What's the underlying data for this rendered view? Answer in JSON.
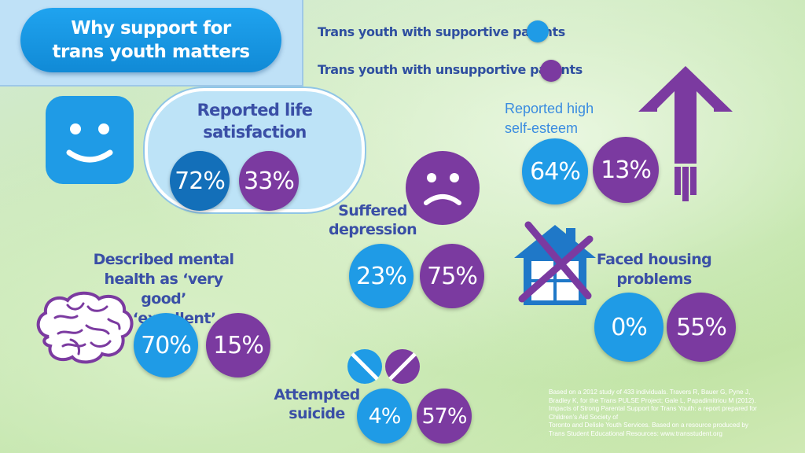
{
  "title": {
    "line1": "Why support for",
    "line2": "trans youth matters"
  },
  "legend": {
    "supportive": {
      "label": "Trans youth with supportive parents",
      "color": "#1f9be6"
    },
    "unsupportive": {
      "label": "Trans youth with unsupportive parents",
      "color": "#7b3aa0"
    }
  },
  "stats": {
    "life_satisfaction": {
      "label_line1": "Reported life",
      "label_line2": "satisfaction",
      "supportive": "72%",
      "unsupportive": "33%"
    },
    "self_esteem": {
      "label_line1": "Reported high",
      "label_line2": "self-esteem",
      "supportive": "64%",
      "unsupportive": "13%"
    },
    "depression": {
      "label_line1": "Suffered",
      "label_line2": "depression",
      "supportive": "23%",
      "unsupportive": "75%"
    },
    "housing": {
      "label_line1": "Faced housing",
      "label_line2": "problems",
      "supportive": "0%",
      "unsupportive": "55%"
    },
    "mental_health": {
      "label_line1": "Described mental",
      "label_line2": "health as ‘very good’",
      "label_line3": "or ‘excellent’",
      "supportive": "70%",
      "unsupportive": "15%"
    },
    "suicide": {
      "label_line1": "Attempted",
      "label_line2": "suicide",
      "supportive": "4%",
      "unsupportive": "57%"
    }
  },
  "footnote": {
    "line1": "Based on a 2012 study of 433 individuals. Travers R, Bauer G, Pyne J,",
    "line2": "Bradley K, for the Trans PULSE Project; Gale L, Papadimitriou M (2012).",
    "line3": "Impacts of Strong Parental Support for Trans Youth: a report prepared for",
    "line4": "Children’s Aid Society of",
    "line5": "Toronto and Delisle Youth Services. Based on a resource produced by",
    "line6": "Trans Student Educational Resources: www.transstudent.org"
  },
  "icons": [
    "smiley-icon",
    "sad-face-icon",
    "up-arrow-icon",
    "crossed-house-icon",
    "brain-icon",
    "pills-icon"
  ]
}
